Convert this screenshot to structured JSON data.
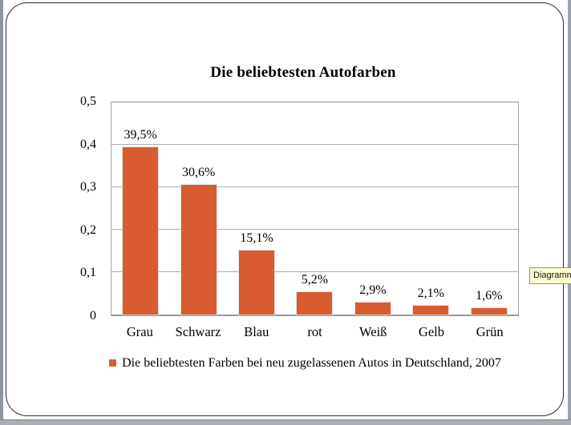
{
  "app": {
    "tooltip": "Diagramm"
  },
  "chart_data": {
    "type": "bar",
    "title": "Die beliebtesten Autofarben",
    "categories": [
      "Grau",
      "Schwarz",
      "Blau",
      "rot",
      "Weiß",
      "Gelb",
      "Grün"
    ],
    "values": [
      0.395,
      0.306,
      0.151,
      0.052,
      0.029,
      0.021,
      0.016
    ],
    "value_labels": [
      "39,5%",
      "30,6%",
      "15,1%",
      "5,2%",
      "2,9%",
      "2,1%",
      "1,6%"
    ],
    "y_tick_labels": [
      "0",
      "0,1",
      "0,2",
      "0,3",
      "0,4",
      "0,5"
    ],
    "y_tick_values": [
      0,
      0.1,
      0.2,
      0.3,
      0.4,
      0.5
    ],
    "ylim": [
      0,
      0.5
    ],
    "grid": true,
    "legend_position": "bottom",
    "legend": "Die beliebtesten Farben bei neu zugelassenen Autos in Deutschland, 2007",
    "bar_color": "#D85C2F"
  }
}
